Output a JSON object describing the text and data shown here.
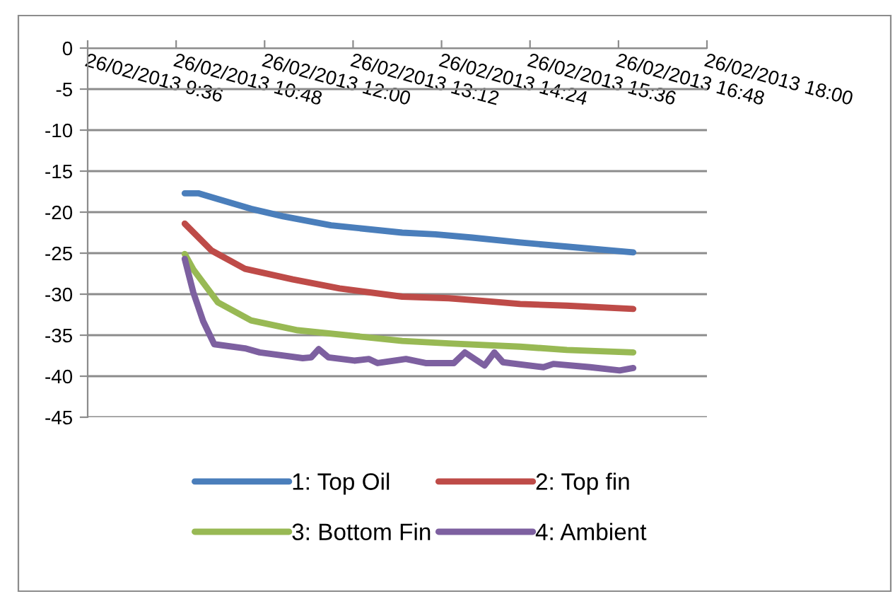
{
  "chart_data": {
    "type": "line",
    "xlim": [
      "2013-02-26T09:36",
      "2013-02-26T18:00"
    ],
    "xticks": [
      {
        "value": "2013-02-26T09:36",
        "label": "26/02/2013 9:36"
      },
      {
        "value": "2013-02-26T10:48",
        "label": "26/02/2013 10:48"
      },
      {
        "value": "2013-02-26T12:00",
        "label": "26/02/2013 12:00"
      },
      {
        "value": "2013-02-26T13:12",
        "label": "26/02/2013 13:12"
      },
      {
        "value": "2013-02-26T14:24",
        "label": "26/02/2013 14:24"
      },
      {
        "value": "2013-02-26T15:36",
        "label": "26/02/2013 15:36"
      },
      {
        "value": "2013-02-26T16:48",
        "label": "26/02/2013 16:48"
      },
      {
        "value": "2013-02-26T18:00",
        "label": "26/02/2013 18:00"
      }
    ],
    "ylim": [
      -45,
      0
    ],
    "yticks": [
      0,
      -5,
      -10,
      -15,
      -20,
      -25,
      -30,
      -35,
      -40,
      -45
    ],
    "grid": "y",
    "legend": "bottom",
    "marker": "none",
    "line_style": "solid",
    "series": [
      {
        "name": "1: Top Oil",
        "color": "#4a7ebb",
        "x": [
          "2013-02-26T10:55",
          "2013-02-26T11:06",
          "2013-02-26T11:22",
          "2013-02-26T11:49",
          "2013-02-26T12:15",
          "2013-02-26T12:54",
          "2013-02-26T13:52",
          "2013-02-26T14:19",
          "2013-02-26T14:49",
          "2013-02-26T15:28",
          "2013-02-26T16:06",
          "2013-02-26T17:00"
        ],
        "values": [
          -17.7,
          -17.7,
          -18.4,
          -19.6,
          -20.5,
          -21.6,
          -22.5,
          -22.7,
          -23.1,
          -23.7,
          -24.2,
          -24.9
        ]
      },
      {
        "name": "2: Top fin",
        "color": "#be4b48",
        "x": [
          "2013-02-26T10:55",
          "2013-02-26T11:17",
          "2013-02-26T11:44",
          "2013-02-26T12:23",
          "2013-02-26T13:01",
          "2013-02-26T13:52",
          "2013-02-26T14:30",
          "2013-02-26T15:04",
          "2013-02-26T15:28",
          "2013-02-26T16:06",
          "2013-02-26T17:00"
        ],
        "values": [
          -21.4,
          -24.7,
          -26.9,
          -28.2,
          -29.3,
          -30.3,
          -30.5,
          -30.9,
          -31.2,
          -31.4,
          -31.8
        ]
      },
      {
        "name": "3: Bottom Fin",
        "color": "#98b954",
        "x": [
          "2013-02-26T10:55",
          "2013-02-26T11:02",
          "2013-02-26T11:22",
          "2013-02-26T11:49",
          "2013-02-26T12:27",
          "2013-02-26T13:13",
          "2013-02-26T13:52",
          "2013-02-26T14:30",
          "2013-02-26T15:28",
          "2013-02-26T16:06",
          "2013-02-26T17:00"
        ],
        "values": [
          -25.1,
          -27.0,
          -31.0,
          -33.2,
          -34.4,
          -35.1,
          -35.7,
          -36.0,
          -36.4,
          -36.8,
          -37.1
        ]
      },
      {
        "name": "4: Ambient",
        "color": "#7d60a0",
        "x": [
          "2013-02-26T10:55",
          "2013-02-26T11:02",
          "2013-02-26T11:10",
          "2013-02-26T11:19",
          "2013-02-26T11:44",
          "2013-02-26T11:56",
          "2013-02-26T12:31",
          "2013-02-26T12:38",
          "2013-02-26T12:44",
          "2013-02-26T12:52",
          "2013-02-26T13:13",
          "2013-02-26T13:25",
          "2013-02-26T13:32",
          "2013-02-26T13:55",
          "2013-02-26T14:11",
          "2013-02-26T14:34",
          "2013-02-26T14:43",
          "2013-02-26T14:59",
          "2013-02-26T15:07",
          "2013-02-26T15:14",
          "2013-02-26T15:47",
          "2013-02-26T15:55",
          "2013-02-26T16:25",
          "2013-02-26T16:49",
          "2013-02-26T17:00"
        ],
        "values": [
          -25.7,
          -29.8,
          -33.3,
          -36.1,
          -36.6,
          -37.1,
          -37.8,
          -37.7,
          -36.7,
          -37.7,
          -38.1,
          -37.9,
          -38.4,
          -37.9,
          -38.4,
          -38.4,
          -37.1,
          -38.7,
          -37.1,
          -38.3,
          -38.9,
          -38.5,
          -38.9,
          -39.3,
          -39.0
        ]
      }
    ]
  }
}
